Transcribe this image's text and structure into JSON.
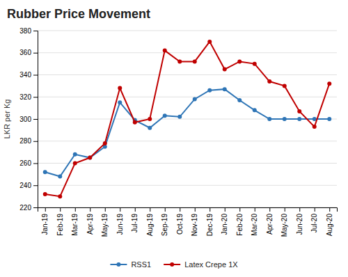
{
  "chart_data": {
    "type": "line",
    "title": "Rubber Price Movement",
    "ylabel": "LKR per Kg",
    "categories": [
      "Jan-19",
      "Feb-19",
      "Mar-19",
      "Apr-19",
      "May-19",
      "Jun-19",
      "Jul-19",
      "Aug-19",
      "Sep-19",
      "Oct-19",
      "Nov-19",
      "Dec-19",
      "Jan-20",
      "Feb-20",
      "Mar-20",
      "Apr-20",
      "May-20",
      "Jun-20",
      "Jul-20",
      "Aug-20"
    ],
    "series": [
      {
        "name": "RSS1",
        "color": "#2e75b6",
        "marker": "circle",
        "values": [
          252,
          248,
          268,
          265,
          275,
          315,
          299,
          292,
          303,
          302,
          318,
          326,
          327,
          317,
          308,
          300,
          300,
          300,
          300,
          300
        ]
      },
      {
        "name": "Latex Crepe 1X",
        "color": "#c00000",
        "marker": "circle",
        "values": [
          232,
          230,
          260,
          265,
          278,
          328,
          297,
          300,
          362,
          352,
          352,
          370,
          345,
          352,
          350,
          334,
          330,
          307,
          293,
          332
        ]
      }
    ],
    "ylim": [
      220,
      380
    ],
    "yticks": [
      220,
      240,
      260,
      280,
      300,
      320,
      340,
      360,
      380
    ],
    "grid": true,
    "legend": "bottom"
  }
}
